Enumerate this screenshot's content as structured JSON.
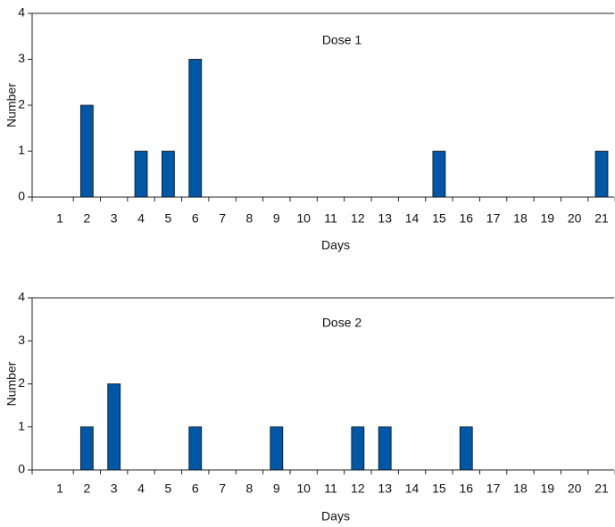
{
  "chart_data": [
    {
      "type": "bar",
      "title": "Dose 1",
      "x_label": "Days",
      "y_label": "Number",
      "categories": [
        "1",
        "2",
        "3",
        "4",
        "5",
        "6",
        "7",
        "8",
        "9",
        "10",
        "11",
        "12",
        "13",
        "14",
        "15",
        "16",
        "17",
        "18",
        "19",
        "20",
        "21"
      ],
      "values": [
        0,
        2,
        0,
        1,
        1,
        3,
        0,
        0,
        0,
        0,
        0,
        0,
        0,
        0,
        1,
        0,
        0,
        0,
        0,
        0,
        1
      ],
      "color": "#0057a8",
      "ylim": [
        0,
        4
      ],
      "yticks": [
        0,
        1,
        2,
        3,
        4
      ]
    },
    {
      "type": "bar",
      "title": "Dose 2",
      "x_label": "Days",
      "y_label": "Number",
      "categories": [
        "1",
        "2",
        "3",
        "4",
        "5",
        "6",
        "7",
        "8",
        "9",
        "10",
        "11",
        "12",
        "13",
        "14",
        "15",
        "16",
        "17",
        "18",
        "19",
        "20",
        "21"
      ],
      "values": [
        0,
        1,
        2,
        0,
        0,
        1,
        0,
        0,
        1,
        0,
        0,
        1,
        1,
        0,
        0,
        1,
        0,
        0,
        0,
        0,
        0
      ],
      "color": "#0057a8",
      "ylim": [
        0,
        4
      ],
      "yticks": [
        0,
        1,
        2,
        3,
        4
      ]
    }
  ]
}
